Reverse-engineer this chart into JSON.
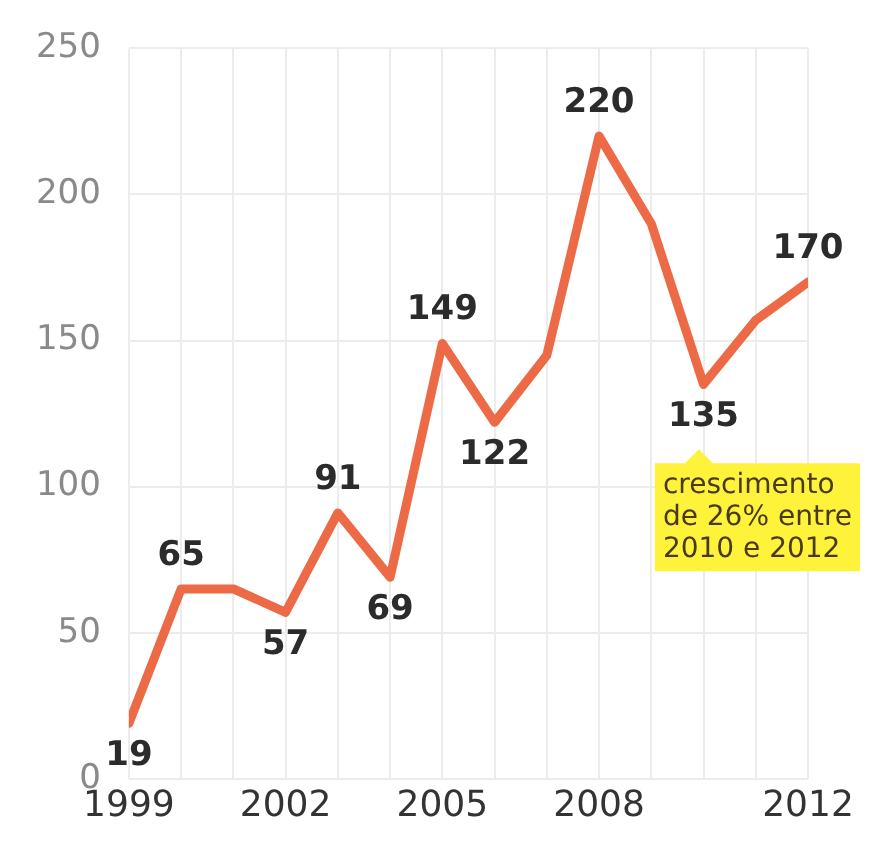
{
  "chart_data": {
    "type": "line",
    "x": [
      1999,
      2000,
      2001,
      2002,
      2003,
      2004,
      2005,
      2006,
      2007,
      2008,
      2009,
      2010,
      2011,
      2012
    ],
    "series": [
      {
        "color": "#ec6a45",
        "values": [
          19,
          65,
          65,
          57,
          91,
          69,
          149,
          122,
          145,
          220,
          190,
          135,
          157,
          170
        ],
        "value_labels": [
          "19",
          "65",
          null,
          "57",
          "91",
          "69",
          "149",
          "122",
          null,
          "220",
          null,
          "135",
          null,
          "170"
        ]
      }
    ],
    "xlim": [
      1999,
      2012
    ],
    "xticks": [
      1999,
      {
        "value": 2000,
        "label": null
      },
      {
        "value": 2001,
        "label": null
      },
      2002,
      {
        "value": 2003,
        "label": null
      },
      {
        "value": 2004,
        "label": null
      },
      2005,
      {
        "value": 2006,
        "label": null
      },
      {
        "value": 2007,
        "label": null
      },
      2008,
      {
        "value": 2009,
        "label": null
      },
      {
        "value": 2010,
        "label": null
      },
      {
        "value": 2011,
        "label": null
      },
      2012
    ],
    "ylim": [
      0,
      250
    ],
    "yticks": [
      0,
      50,
      100,
      150,
      200,
      250
    ],
    "grid": true,
    "marker": "none",
    "line_style": "solid",
    "legend": false,
    "annotations": [
      "crescimento\nde 26% entre\n2010 e 2012"
    ]
  }
}
